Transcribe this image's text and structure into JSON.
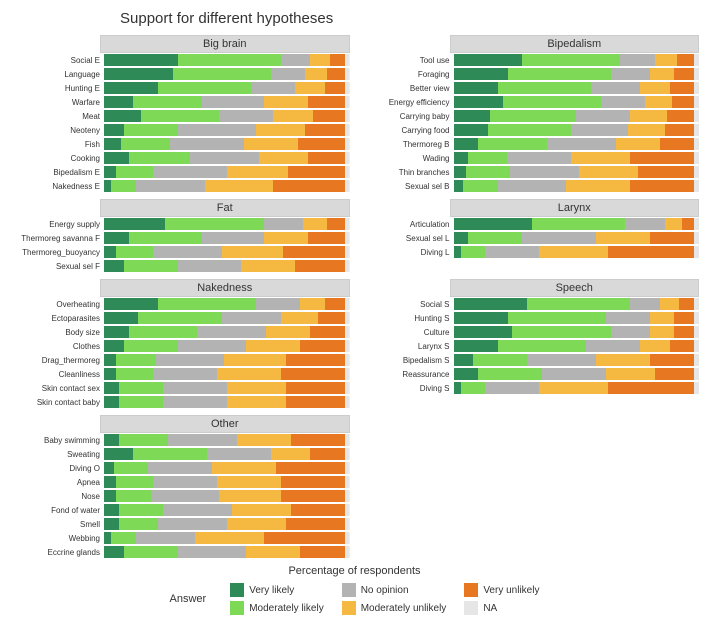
{
  "title": "Support for different hypotheses",
  "xaxis_label": "Percentage of respondents",
  "legend_title": "Answer",
  "colors": {
    "very_likely": "#2e8b57",
    "moderately_likely": "#7ed957",
    "no_opinion": "#b3b3b3",
    "moderately_unlikely": "#f5b942",
    "very_unlikely": "#e87722",
    "na": "#e6e6e6"
  },
  "legend": [
    {
      "key": "very_likely",
      "label": "Very likely"
    },
    {
      "key": "moderately_likely",
      "label": "Moderately likely"
    },
    {
      "key": "no_opinion",
      "label": "No opinion"
    },
    {
      "key": "moderately_unlikely",
      "label": "Moderately unlikely"
    },
    {
      "key": "very_unlikely",
      "label": "Very unlikely"
    },
    {
      "key": "na",
      "label": "NA"
    }
  ],
  "panels": [
    {
      "title": "Big brain",
      "col": 1,
      "rows": [
        {
          "label": "Social E",
          "v": [
            30,
            42,
            12,
            8,
            6,
            2
          ]
        },
        {
          "label": "Language",
          "v": [
            28,
            40,
            14,
            9,
            7,
            2
          ]
        },
        {
          "label": "Hunting E",
          "v": [
            22,
            38,
            18,
            12,
            8,
            2
          ]
        },
        {
          "label": "Warfare",
          "v": [
            12,
            28,
            25,
            18,
            15,
            2
          ]
        },
        {
          "label": "Meat",
          "v": [
            15,
            32,
            22,
            16,
            13,
            2
          ]
        },
        {
          "label": "Neoteny",
          "v": [
            8,
            22,
            32,
            20,
            16,
            2
          ]
        },
        {
          "label": "Fish",
          "v": [
            7,
            20,
            30,
            22,
            19,
            2
          ]
        },
        {
          "label": "Cooking",
          "v": [
            10,
            25,
            28,
            20,
            15,
            2
          ]
        },
        {
          "label": "Bipedalism E",
          "v": [
            5,
            15,
            30,
            25,
            23,
            2
          ]
        },
        {
          "label": "Nakedness E",
          "v": [
            3,
            10,
            28,
            28,
            29,
            2
          ]
        }
      ]
    },
    {
      "title": "Bipedalism",
      "col": 2,
      "rows": [
        {
          "label": "Tool use",
          "v": [
            28,
            40,
            14,
            9,
            7,
            2
          ]
        },
        {
          "label": "Foraging",
          "v": [
            22,
            42,
            16,
            10,
            8,
            2
          ]
        },
        {
          "label": "Better view",
          "v": [
            18,
            38,
            20,
            12,
            10,
            2
          ]
        },
        {
          "label": "Energy efficiency",
          "v": [
            20,
            40,
            18,
            11,
            9,
            2
          ]
        },
        {
          "label": "Carrying baby",
          "v": [
            15,
            35,
            22,
            15,
            11,
            2
          ]
        },
        {
          "label": "Carrying food",
          "v": [
            14,
            34,
            23,
            15,
            12,
            2
          ]
        },
        {
          "label": "Thermoreg B",
          "v": [
            10,
            28,
            28,
            18,
            14,
            2
          ]
        },
        {
          "label": "Wading",
          "v": [
            6,
            16,
            26,
            24,
            26,
            2
          ]
        },
        {
          "label": "Thin branches",
          "v": [
            5,
            18,
            28,
            24,
            23,
            2
          ]
        },
        {
          "label": "Sexual sel B",
          "v": [
            4,
            14,
            28,
            26,
            26,
            2
          ]
        }
      ]
    },
    {
      "title": "Fat",
      "col": 1,
      "rows": [
        {
          "label": "Energy supply",
          "v": [
            25,
            40,
            16,
            10,
            7,
            2
          ]
        },
        {
          "label": "Thermoreg savanna F",
          "v": [
            10,
            30,
            25,
            18,
            15,
            2
          ]
        },
        {
          "label": "Thermoreg_buoyancy",
          "v": [
            5,
            15,
            28,
            25,
            25,
            2
          ]
        },
        {
          "label": "Sexual sel F",
          "v": [
            8,
            22,
            26,
            22,
            20,
            2
          ]
        }
      ]
    },
    {
      "title": "Larynx",
      "col": 2,
      "rows": [
        {
          "label": "Articulation",
          "v": [
            32,
            38,
            16,
            7,
            5,
            2
          ]
        },
        {
          "label": "Sexual sel L",
          "v": [
            6,
            22,
            30,
            22,
            18,
            2
          ]
        },
        {
          "label": "Diving L",
          "v": [
            3,
            10,
            22,
            28,
            35,
            2
          ]
        }
      ]
    },
    {
      "title": "Nakedness",
      "col": 1,
      "rows": [
        {
          "label": "Overheating",
          "v": [
            22,
            40,
            18,
            10,
            8,
            2
          ]
        },
        {
          "label": "Ectoparasites",
          "v": [
            14,
            34,
            24,
            15,
            11,
            2
          ]
        },
        {
          "label": "Body size",
          "v": [
            10,
            28,
            28,
            18,
            14,
            2
          ]
        },
        {
          "label": "Clothes",
          "v": [
            8,
            22,
            28,
            22,
            18,
            2
          ]
        },
        {
          "label": "Drag_thermoreg",
          "v": [
            5,
            16,
            28,
            25,
            24,
            2
          ]
        },
        {
          "label": "Cleanliness",
          "v": [
            5,
            15,
            26,
            26,
            26,
            2
          ]
        },
        {
          "label": "Skin contact sex",
          "v": [
            6,
            18,
            26,
            24,
            24,
            2
          ]
        },
        {
          "label": "Skin contact baby",
          "v": [
            6,
            18,
            26,
            24,
            24,
            2
          ]
        }
      ]
    },
    {
      "title": "Speech",
      "col": 2,
      "rows": [
        {
          "label": "Social S",
          "v": [
            30,
            42,
            12,
            8,
            6,
            2
          ]
        },
        {
          "label": "Hunting S",
          "v": [
            22,
            40,
            18,
            10,
            8,
            2
          ]
        },
        {
          "label": "Culture",
          "v": [
            24,
            40,
            16,
            10,
            8,
            2
          ]
        },
        {
          "label": "Larynx S",
          "v": [
            18,
            36,
            22,
            12,
            10,
            2
          ]
        },
        {
          "label": "Bipedalism S",
          "v": [
            8,
            22,
            28,
            22,
            18,
            2
          ]
        },
        {
          "label": "Reassurance",
          "v": [
            10,
            26,
            26,
            20,
            16,
            2
          ]
        },
        {
          "label": "Diving S",
          "v": [
            3,
            10,
            22,
            28,
            35,
            2
          ]
        }
      ]
    },
    {
      "title": "Other",
      "col": 1,
      "rows": [
        {
          "label": "Baby swimming",
          "v": [
            6,
            20,
            28,
            22,
            22,
            2
          ]
        },
        {
          "label": "Sweating",
          "v": [
            12,
            30,
            26,
            16,
            14,
            2
          ]
        },
        {
          "label": "Diving O",
          "v": [
            4,
            14,
            26,
            26,
            28,
            2
          ]
        },
        {
          "label": "Apnea",
          "v": [
            5,
            15,
            26,
            26,
            26,
            2
          ]
        },
        {
          "label": "Nose",
          "v": [
            5,
            14,
            28,
            25,
            26,
            2
          ]
        },
        {
          "label": "Fond of water",
          "v": [
            6,
            18,
            28,
            24,
            22,
            2
          ]
        },
        {
          "label": "Smell",
          "v": [
            6,
            16,
            28,
            24,
            24,
            2
          ]
        },
        {
          "label": "Webbing",
          "v": [
            3,
            10,
            24,
            28,
            33,
            2
          ]
        },
        {
          "label": "Eccrine glands",
          "v": [
            8,
            22,
            28,
            22,
            18,
            2
          ]
        }
      ]
    }
  ]
}
